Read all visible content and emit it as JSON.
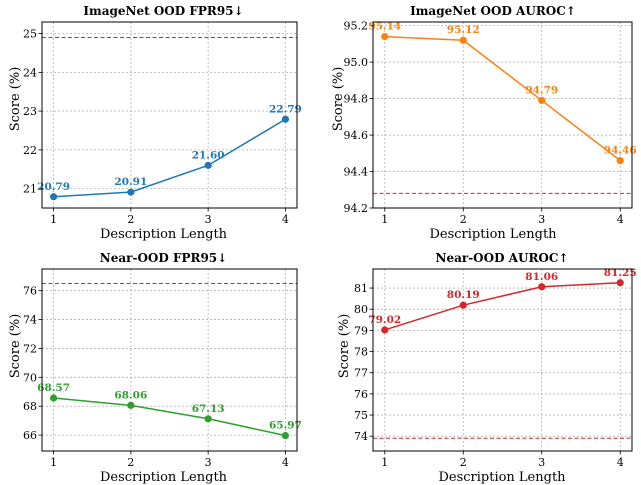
{
  "chart_data": [
    {
      "type": "line",
      "title": "ImageNet OOD FPR95↓",
      "xlabel": "Description Length",
      "ylabel": "Score (%)",
      "x": [
        1,
        2,
        3,
        4
      ],
      "values": [
        20.79,
        20.91,
        21.6,
        22.79
      ],
      "labels": [
        "20.79",
        "20.91",
        "21.60",
        "22.79"
      ],
      "color": "#1f77b4",
      "baseline": 24.9,
      "baseline_color": "#d62728",
      "ylim": [
        20.5,
        25.3
      ],
      "xlim": [
        0.85,
        4.15
      ],
      "yticks": [
        21,
        22,
        23,
        24,
        25
      ],
      "ytick_labels": [
        "21",
        "22",
        "23",
        "24",
        "25"
      ],
      "xtick_labels": [
        "1",
        "2",
        "3",
        "4"
      ],
      "grid": true
    },
    {
      "type": "line",
      "title": "ImageNet OOD AUROC↑",
      "xlabel": "Description Length",
      "ylabel": "Score (%)",
      "x": [
        1,
        2,
        3,
        4
      ],
      "values": [
        95.14,
        95.12,
        94.79,
        94.46
      ],
      "labels": [
        "95.14",
        "95.12",
        "94.79",
        "94.46"
      ],
      "color": "#ff7f0e",
      "baseline": 94.28,
      "baseline_color": "#d62728",
      "ylim": [
        94.2,
        95.22
      ],
      "xlim": [
        0.85,
        4.15
      ],
      "yticks": [
        94.2,
        94.4,
        94.6,
        94.8,
        95.0,
        95.2
      ],
      "ytick_labels": [
        "94.2",
        "94.4",
        "94.6",
        "94.8",
        "95.0",
        "95.2"
      ],
      "xtick_labels": [
        "1",
        "2",
        "3",
        "4"
      ],
      "grid": true
    },
    {
      "type": "line",
      "title": "Near-OOD FPR95↓",
      "xlabel": "Description Length",
      "ylabel": "Score (%)",
      "x": [
        1,
        2,
        3,
        4
      ],
      "values": [
        68.57,
        68.06,
        67.13,
        65.97
      ],
      "labels": [
        "68.57",
        "68.06",
        "67.13",
        "65.97"
      ],
      "color": "#2ca02c",
      "baseline": 76.5,
      "baseline_color": "#d62728",
      "ylim": [
        64.9,
        77.5
      ],
      "xlim": [
        0.85,
        4.15
      ],
      "yticks": [
        66,
        68,
        70,
        72,
        74,
        76
      ],
      "ytick_labels": [
        "66",
        "68",
        "70",
        "72",
        "74",
        "76"
      ],
      "xtick_labels": [
        "1",
        "2",
        "3",
        "4"
      ],
      "grid": true
    },
    {
      "type": "line",
      "title": "Near-OOD AUROC↑",
      "xlabel": "Description Length",
      "ylabel": "Score (%)",
      "x": [
        1,
        2,
        3,
        4
      ],
      "values": [
        79.02,
        80.19,
        81.06,
        81.25
      ],
      "labels": [
        "79.02",
        "80.19",
        "81.06",
        "81.25"
      ],
      "color": "#d62728",
      "baseline": 73.9,
      "baseline_color": "#d62728",
      "ylim": [
        73.3,
        81.9
      ],
      "xlim": [
        0.85,
        4.15
      ],
      "yticks": [
        74,
        75,
        76,
        77,
        78,
        79,
        80,
        81
      ],
      "ytick_labels": [
        "74",
        "75",
        "76",
        "77",
        "78",
        "79",
        "80",
        "81"
      ],
      "xtick_labels": [
        "1",
        "2",
        "3",
        "4"
      ],
      "grid": true
    }
  ]
}
